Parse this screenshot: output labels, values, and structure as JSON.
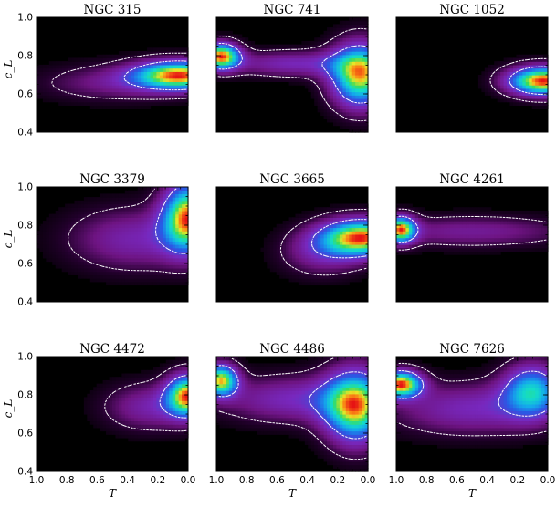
{
  "figure": {
    "xlabel": "T",
    "ylabel": "c_L"
  },
  "chart_data": {
    "type": "heatmap",
    "xlabel": "T",
    "ylabel": "c_L",
    "xlim": [
      1.0,
      0.0
    ],
    "ylim": [
      0.4,
      1.0
    ],
    "x_ticks": [
      "1.0",
      "0.8",
      "0.6",
      "0.4",
      "0.2",
      "0.0"
    ],
    "y_ticks": [
      "0.4",
      "0.6",
      "0.8",
      "1.0"
    ],
    "colormap": "black-purple-blue-cyan-green-yellow-red",
    "contours": "white",
    "panels": [
      {
        "title": "NGC 315",
        "peaks": [
          {
            "T": 0.05,
            "c": 0.7,
            "sT": 0.22,
            "sc": 0.055,
            "a": 1.0
          },
          {
            "T": 0.5,
            "c": 0.66,
            "sT": 0.35,
            "sc": 0.07,
            "a": 0.25
          }
        ]
      },
      {
        "title": "NGC 741",
        "peaks": [
          {
            "T": 0.97,
            "c": 0.8,
            "sT": 0.09,
            "sc": 0.05,
            "a": 0.62
          },
          {
            "T": 0.05,
            "c": 0.7,
            "sT": 0.14,
            "sc": 0.12,
            "a": 0.6
          },
          {
            "T": 0.5,
            "c": 0.76,
            "sT": 0.3,
            "sc": 0.05,
            "a": 0.22
          }
        ]
      },
      {
        "title": "NGC 1052",
        "peaks": [
          {
            "T": 0.03,
            "c": 0.67,
            "sT": 0.17,
            "sc": 0.055,
            "a": 1.0
          }
        ]
      },
      {
        "title": "NGC 3379",
        "peaks": [
          {
            "T": 0.0,
            "c": 0.85,
            "sT": 0.12,
            "sc": 0.13,
            "a": 1.0
          },
          {
            "T": 0.35,
            "c": 0.73,
            "sT": 0.32,
            "sc": 0.12,
            "a": 0.35
          }
        ]
      },
      {
        "title": "NGC 3665",
        "peaks": [
          {
            "T": 0.03,
            "c": 0.74,
            "sT": 0.2,
            "sc": 0.07,
            "a": 1.0
          },
          {
            "T": 0.3,
            "c": 0.66,
            "sT": 0.2,
            "sc": 0.09,
            "a": 0.3
          }
        ]
      },
      {
        "title": "NGC 4261",
        "peaks": [
          {
            "T": 0.97,
            "c": 0.78,
            "sT": 0.07,
            "sc": 0.05,
            "a": 0.7
          },
          {
            "T": 0.5,
            "c": 0.77,
            "sT": 0.5,
            "sc": 0.06,
            "a": 0.22
          }
        ]
      },
      {
        "title": "NGC 4472",
        "peaks": [
          {
            "T": 0.0,
            "c": 0.8,
            "sT": 0.1,
            "sc": 0.08,
            "a": 1.0
          },
          {
            "T": 0.25,
            "c": 0.74,
            "sT": 0.22,
            "sc": 0.09,
            "a": 0.35
          }
        ]
      },
      {
        "title": "NGC 4486",
        "peaks": [
          {
            "T": 0.97,
            "c": 0.88,
            "sT": 0.08,
            "sc": 0.06,
            "a": 0.55
          },
          {
            "T": 0.08,
            "c": 0.74,
            "sT": 0.15,
            "sc": 0.14,
            "a": 0.55
          },
          {
            "T": 0.5,
            "c": 0.78,
            "sT": 0.35,
            "sc": 0.09,
            "a": 0.22
          }
        ]
      },
      {
        "title": "NGC 7626",
        "peaks": [
          {
            "T": 0.97,
            "c": 0.86,
            "sT": 0.1,
            "sc": 0.05,
            "a": 0.7
          },
          {
            "T": 0.1,
            "c": 0.83,
            "sT": 0.14,
            "sc": 0.1,
            "a": 0.45
          },
          {
            "T": 0.5,
            "c": 0.73,
            "sT": 0.4,
            "sc": 0.1,
            "a": 0.25
          }
        ]
      }
    ]
  }
}
